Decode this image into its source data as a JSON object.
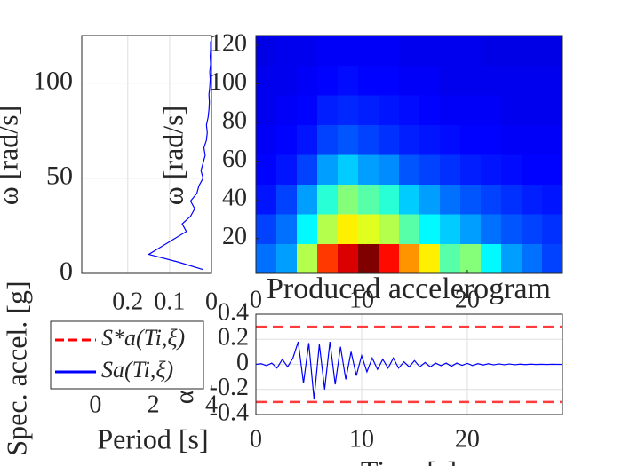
{
  "chart_data": [
    {
      "type": "spectrum",
      "y_label": "ω [rad/s]",
      "xlim": [
        0.31,
        0
      ],
      "xticks": [
        0.2,
        0.1,
        0
      ],
      "ylim": [
        0,
        125
      ],
      "yticks": [
        0,
        50,
        100
      ],
      "grid": true,
      "series": [
        {
          "color": "#0000ff",
          "omega": [
            2,
            6,
            10,
            14,
            18,
            22,
            26,
            30,
            34,
            38,
            42,
            46,
            50,
            54,
            58,
            62,
            66,
            70,
            74,
            78,
            82,
            86,
            90,
            94,
            98,
            102,
            106,
            110,
            114,
            118,
            122
          ],
          "values": [
            0.02,
            0.08,
            0.15,
            0.12,
            0.09,
            0.06,
            0.07,
            0.05,
            0.04,
            0.05,
            0.035,
            0.03,
            0.02,
            0.025,
            0.02,
            0.015,
            0.018,
            0.012,
            0.01,
            0.012,
            0.008,
            0.006,
            0.005,
            0.006,
            0.004,
            0.003,
            0.004,
            0.002,
            0.003,
            0.002,
            0.002
          ]
        }
      ]
    },
    {
      "type": "heatmap",
      "y_label": "ω [rad/s]",
      "xlim": [
        0,
        29
      ],
      "xticks": [
        0,
        10,
        20
      ],
      "ylim": [
        2,
        125
      ],
      "yticks": [
        20,
        40,
        60,
        80,
        100,
        120
      ],
      "clim": [
        0,
        1
      ],
      "z": [
        [
          0.15,
          0.2,
          0.5,
          0.8,
          0.9,
          1.0,
          0.85,
          0.7,
          0.6,
          0.4,
          0.45,
          0.3,
          0.2,
          0.15,
          0.1
        ],
        [
          0.1,
          0.15,
          0.3,
          0.5,
          0.6,
          0.55,
          0.5,
          0.4,
          0.3,
          0.25,
          0.2,
          0.15,
          0.12,
          0.1,
          0.08
        ],
        [
          0.05,
          0.1,
          0.2,
          0.35,
          0.45,
          0.4,
          0.35,
          0.25,
          0.2,
          0.15,
          0.12,
          0.1,
          0.08,
          0.06,
          0.05
        ],
        [
          0.03,
          0.05,
          0.1,
          0.2,
          0.25,
          0.2,
          0.18,
          0.12,
          0.1,
          0.08,
          0.06,
          0.05,
          0.04,
          0.03,
          0.03
        ],
        [
          0.02,
          0.03,
          0.05,
          0.1,
          0.12,
          0.1,
          0.08,
          0.06,
          0.05,
          0.04,
          0.03,
          0.03,
          0.02,
          0.02,
          0.02
        ],
        [
          0.01,
          0.02,
          0.03,
          0.06,
          0.07,
          0.06,
          0.05,
          0.04,
          0.03,
          0.02,
          0.02,
          0.02,
          0.01,
          0.01,
          0.01
        ],
        [
          0.01,
          0.01,
          0.02,
          0.03,
          0.04,
          0.03,
          0.03,
          0.02,
          0.02,
          0.01,
          0.01,
          0.01,
          0.01,
          0.01,
          0.01
        ],
        [
          0,
          0.01,
          0.01,
          0.02,
          0.02,
          0.02,
          0.02,
          0.01,
          0.01,
          0.01,
          0.01,
          0,
          0,
          0,
          0
        ]
      ]
    },
    {
      "type": "line",
      "title": "Produced accelerogram",
      "x_label": "Time [s]",
      "y_label": "α(t) [g]",
      "xlim": [
        0,
        29
      ],
      "xticks": [
        0,
        10,
        20
      ],
      "ylim": [
        -0.4,
        0.4
      ],
      "yticks": [
        -0.4,
        -0.2,
        0,
        0.2,
        0.4
      ],
      "grid": true,
      "hlines": [
        0.3,
        -0.3
      ],
      "hline_color": "#ff3b3b",
      "x": [
        0,
        0.5,
        1,
        1.5,
        2,
        2.5,
        3,
        3.5,
        4,
        4.5,
        5,
        5.5,
        6,
        6.5,
        7,
        7.5,
        8,
        8.5,
        9,
        9.5,
        10,
        10.5,
        11,
        11.5,
        12,
        12.5,
        13,
        13.5,
        14,
        14.5,
        15,
        15.5,
        16,
        16.5,
        17,
        17.5,
        18,
        18.5,
        19,
        19.5,
        20,
        20.5,
        21,
        21.5,
        22,
        22.5,
        23,
        23.5,
        24,
        24.5,
        25,
        25.5,
        26,
        26.5,
        27,
        27.5,
        28,
        28.5,
        29
      ],
      "series": [
        {
          "color": "#0000ff",
          "values": [
            0,
            0.005,
            -0.01,
            0.01,
            -0.03,
            0.04,
            -0.02,
            0.05,
            0.18,
            -0.15,
            0.17,
            -0.28,
            0.16,
            -0.2,
            0.18,
            -0.16,
            0.14,
            -0.12,
            0.1,
            -0.09,
            0.07,
            -0.06,
            0.05,
            -0.04,
            0.04,
            -0.03,
            0.05,
            -0.03,
            0.02,
            -0.02,
            0.03,
            -0.02,
            0.015,
            -0.02,
            0.01,
            -0.01,
            0.01,
            -0.015,
            0.01,
            -0.008,
            0.008,
            -0.01,
            0.006,
            -0.005,
            0.005,
            -0.004,
            0.004,
            -0.003,
            0.003,
            -0.003,
            0.002,
            -0.002,
            0.002,
            -0.001,
            0.001,
            -0.001,
            0.001,
            0,
            0
          ]
        }
      ]
    },
    {
      "type": "legend-only",
      "x_label": "Period [s]",
      "y_label": "Spec. accel. [g]",
      "xlim": [
        -0.47,
        4
      ],
      "xticks": [
        0,
        2,
        4
      ],
      "series": [
        {
          "name": "S*a(Ti,ξ)",
          "color": "#ff0000",
          "dashed": true
        },
        {
          "name": "Sa(Ti,ξ)",
          "color": "#0000ff",
          "dashed": false
        }
      ]
    }
  ]
}
